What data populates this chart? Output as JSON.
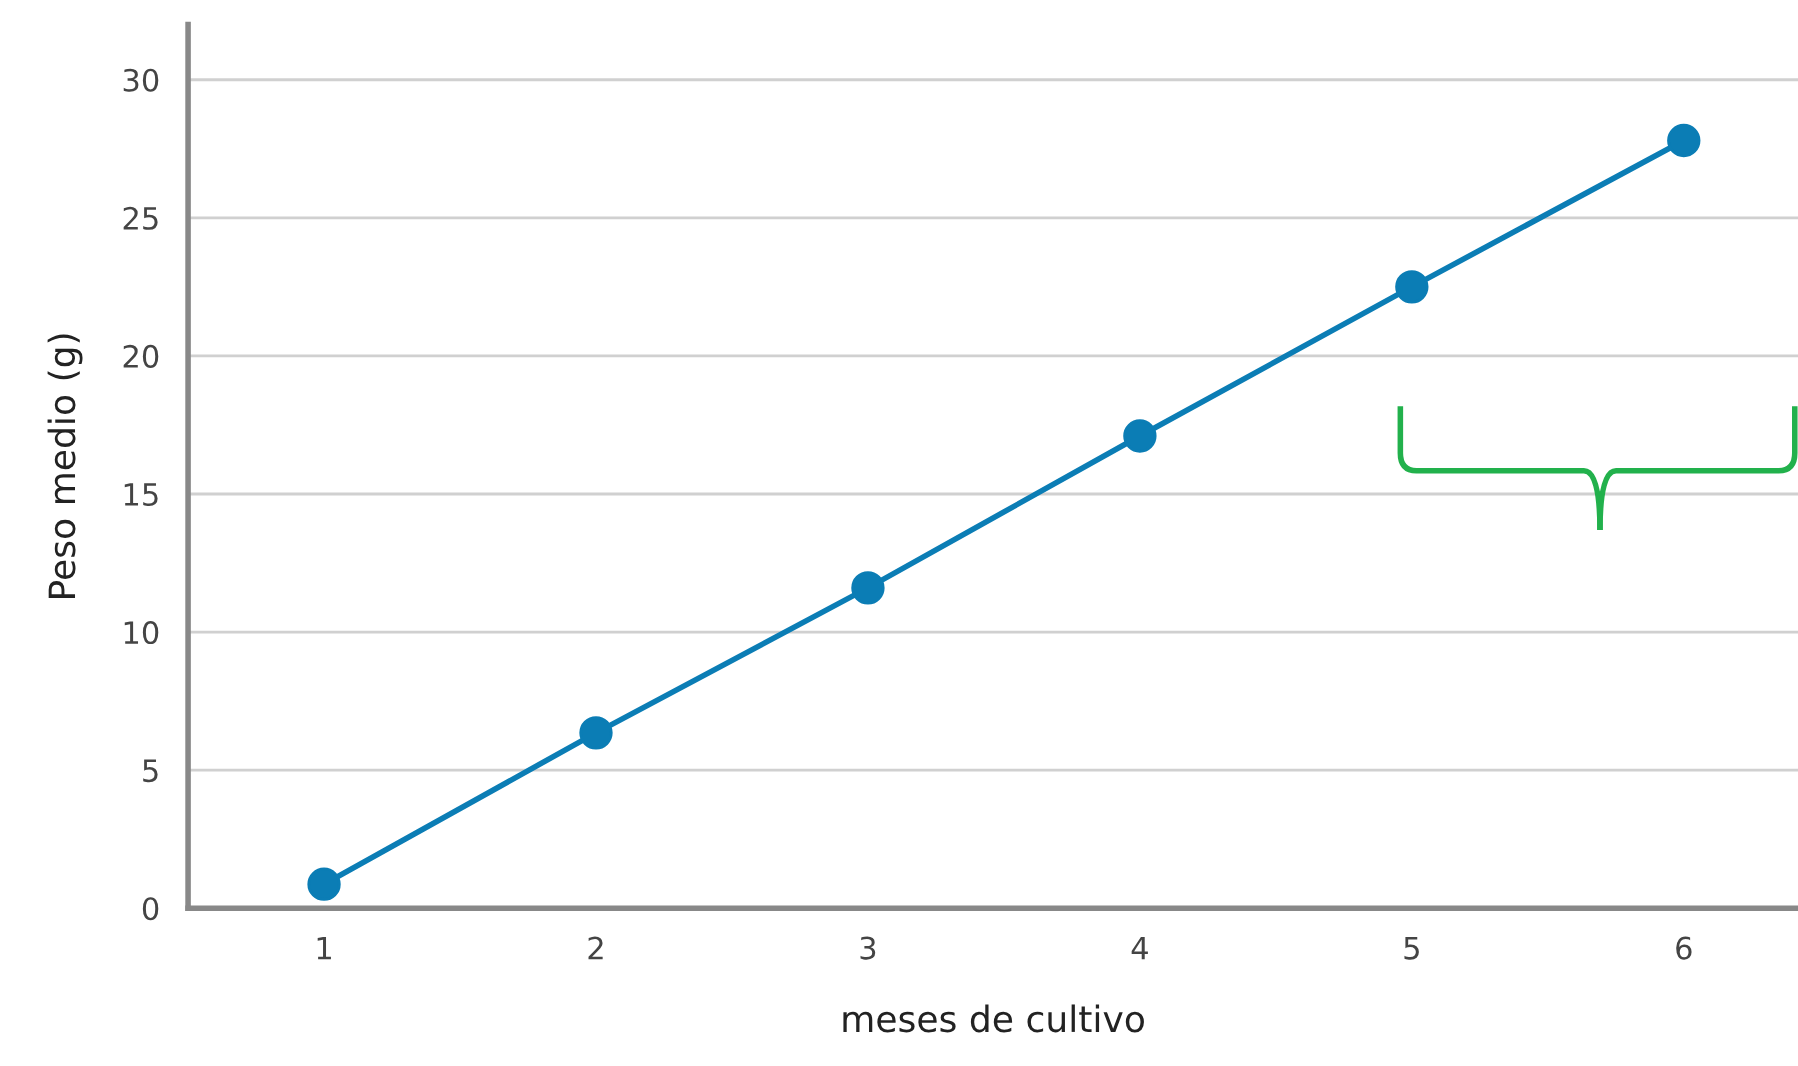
{
  "chart_data": {
    "type": "line",
    "xlabel": "meses de cultivo",
    "ylabel": "Peso medio (g)",
    "x": [
      1,
      2,
      3,
      4,
      5,
      6
    ],
    "series": [
      {
        "color": "#0b7db5",
        "values": [
          0.87,
          6.35,
          11.6,
          17.1,
          22.5,
          27.8
        ]
      }
    ],
    "xlim": [
      0.5,
      6.42
    ],
    "xticks": [
      1,
      2,
      3,
      4,
      5,
      6
    ],
    "ylim": [
      0,
      32
    ],
    "yticks": [
      0,
      5,
      10,
      15,
      20,
      25,
      30
    ],
    "grid": "y",
    "marker": "circle",
    "line_style": "solid"
  }
}
